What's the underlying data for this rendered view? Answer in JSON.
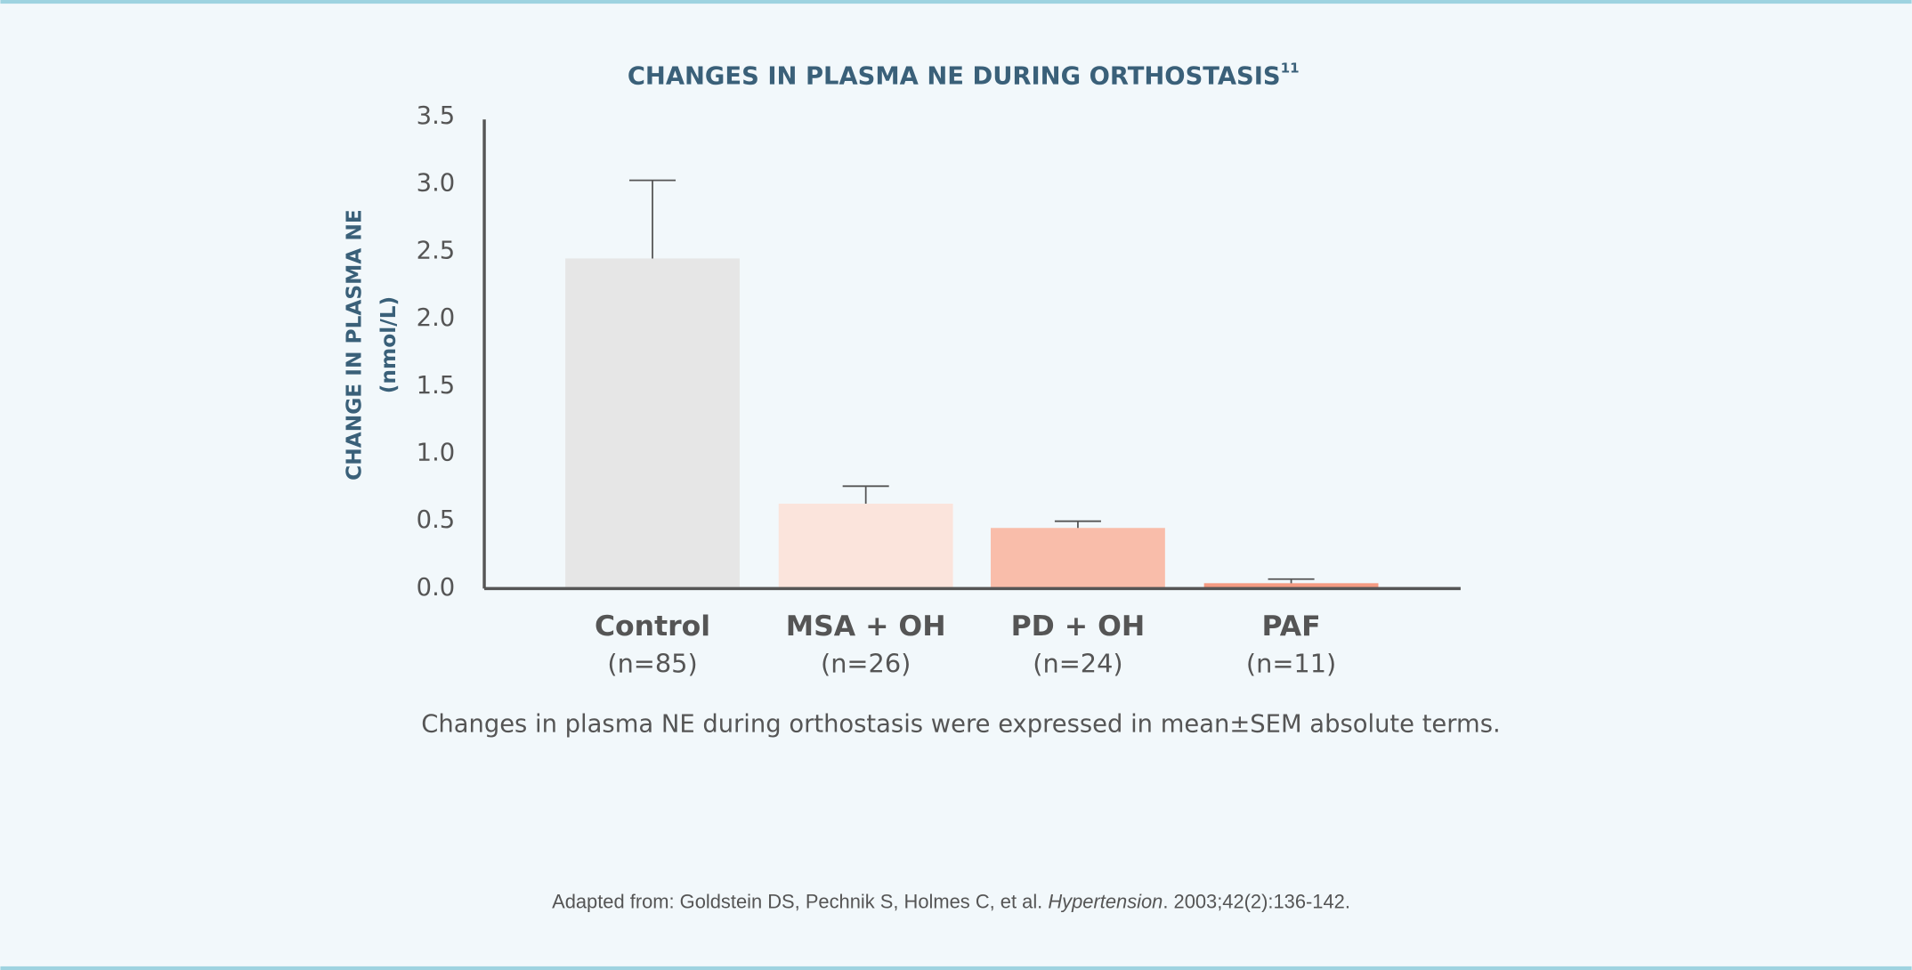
{
  "chart_data": {
    "type": "bar",
    "title": "CHANGES IN PLASMA NE DURING ORTHOSTASIS",
    "title_superscript": "11",
    "y_label": [
      "CHANGE IN PLASMA NE",
      "(nmol/L)"
    ],
    "categories": [
      "Control",
      "MSA + OH",
      "PD + OH",
      "PAF"
    ],
    "category_counts": [
      "(n=85)",
      "(n=26)",
      "(n=24)",
      "(n=11)"
    ],
    "values": [
      2.45,
      0.63,
      0.45,
      0.04
    ],
    "errors": [
      0.58,
      0.13,
      0.05,
      0.03
    ],
    "colors": [
      "#e6e6e6",
      "#fbe4dc",
      "#f9bdaa",
      "#f59b82"
    ],
    "ylim": [
      0,
      3.5
    ],
    "yticks": [
      {
        "value": 0,
        "label": "0.0"
      },
      0.5,
      {
        "value": 1,
        "label": "1.0"
      },
      1.5,
      {
        "value": 2,
        "label": "2.0"
      },
      2.5,
      {
        "value": 3,
        "label": "3.0"
      },
      3.5
    ],
    "caption": "Changes in plasma NE during orthostasis were expressed in mean±SEM absolute terms.",
    "source": {
      "before": "Adapted from: Goldstein DS, Pechnik S, Holmes C, et al.",
      "journal": "Hypertension",
      "after": ". 2003;42(2):136-142."
    }
  }
}
